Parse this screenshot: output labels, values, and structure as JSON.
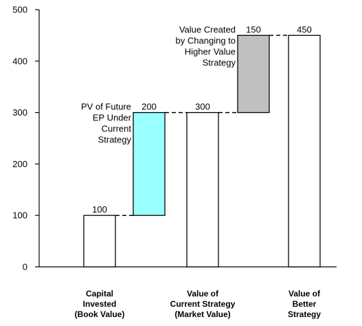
{
  "chart_data": {
    "type": "bar",
    "subtype": "waterfall",
    "ylim": [
      0,
      500
    ],
    "yticks": [
      0,
      100,
      200,
      300,
      400,
      500
    ],
    "bars": [
      {
        "base": 0,
        "value": 100,
        "label": "100",
        "fill": "#ffffff",
        "category": [
          "Capital",
          "Invested",
          "(Book Value)"
        ]
      },
      {
        "base": 100,
        "value": 200,
        "label": "200",
        "fill": "#99ffff",
        "annotation": [
          "PV of Future",
          "EP Under",
          "Current",
          "Strategy"
        ]
      },
      {
        "base": 0,
        "value": 300,
        "label": "300",
        "fill": "#ffffff",
        "category": [
          "Value of",
          "Current Strategy",
          "(Market Value)"
        ]
      },
      {
        "base": 300,
        "value": 150,
        "label": "150",
        "fill": "#c0c0c0",
        "annotation": [
          "Value Created",
          "by Changing to",
          "Higher Value",
          "Strategy"
        ]
      },
      {
        "base": 0,
        "value": 450,
        "label": "450",
        "fill": "#ffffff",
        "category": [
          "Value of",
          "Better",
          "Strategy"
        ]
      }
    ],
    "connector_style": "dashed",
    "grid": false,
    "legend": "none"
  }
}
